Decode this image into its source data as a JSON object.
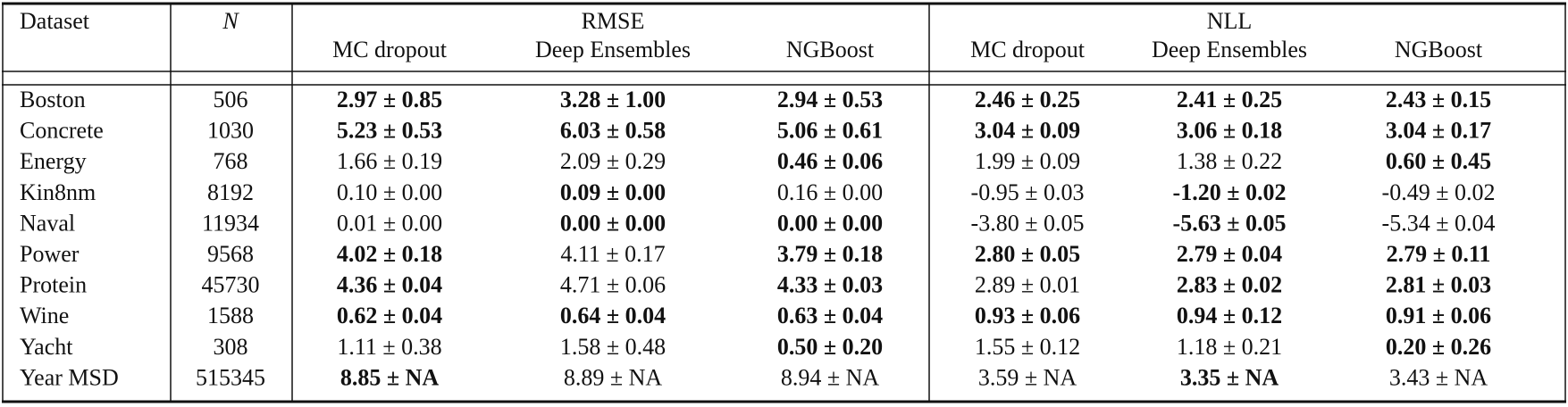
{
  "table": {
    "header": {
      "dataset": "Dataset",
      "n": "N",
      "groups": [
        {
          "title": "RMSE",
          "columns": [
            "MC dropout",
            "Deep Ensembles",
            "NGBoost"
          ]
        },
        {
          "title": "NLL",
          "columns": [
            "MC dropout",
            "Deep Ensembles",
            "NGBoost"
          ]
        }
      ]
    },
    "rows": [
      {
        "dataset": "Boston",
        "n": 506,
        "cells": [
          "2.97 ± 0.85",
          "3.28 ± 1.00",
          "2.94 ± 0.53",
          "2.46 ± 0.25",
          "2.41 ± 0.25",
          "2.43 ± 0.15"
        ],
        "bold": [
          true,
          true,
          true,
          true,
          true,
          true
        ]
      },
      {
        "dataset": "Concrete",
        "n": 1030,
        "cells": [
          "5.23 ± 0.53",
          "6.03 ± 0.58",
          "5.06 ± 0.61",
          "3.04 ± 0.09",
          "3.06 ± 0.18",
          "3.04 ± 0.17"
        ],
        "bold": [
          true,
          true,
          true,
          true,
          true,
          true
        ]
      },
      {
        "dataset": "Energy",
        "n": 768,
        "cells": [
          "1.66 ± 0.19",
          "2.09 ± 0.29",
          "0.46 ± 0.06",
          "1.99 ± 0.09",
          "1.38 ± 0.22",
          "0.60 ± 0.45"
        ],
        "bold": [
          false,
          false,
          true,
          false,
          false,
          true
        ]
      },
      {
        "dataset": "Kin8nm",
        "n": 8192,
        "cells": [
          "0.10 ± 0.00",
          "0.09 ± 0.00",
          "0.16 ± 0.00",
          "-0.95 ± 0.03",
          "-1.20 ± 0.02",
          "-0.49 ± 0.02"
        ],
        "bold": [
          false,
          true,
          false,
          false,
          true,
          false
        ]
      },
      {
        "dataset": "Naval",
        "n": 11934,
        "cells": [
          "0.01 ± 0.00",
          "0.00 ± 0.00",
          "0.00 ± 0.00",
          "-3.80 ± 0.05",
          "-5.63 ± 0.05",
          "-5.34 ± 0.04"
        ],
        "bold": [
          false,
          true,
          true,
          false,
          true,
          false
        ]
      },
      {
        "dataset": "Power",
        "n": 9568,
        "cells": [
          "4.02 ± 0.18",
          "4.11 ± 0.17",
          "3.79 ± 0.18",
          "2.80 ± 0.05",
          "2.79 ± 0.04",
          "2.79 ± 0.11"
        ],
        "bold": [
          true,
          false,
          true,
          true,
          true,
          true
        ]
      },
      {
        "dataset": "Protein",
        "n": 45730,
        "cells": [
          "4.36 ± 0.04",
          "4.71 ± 0.06",
          "4.33 ± 0.03",
          "2.89 ± 0.01",
          "2.83 ± 0.02",
          "2.81 ± 0.03"
        ],
        "bold": [
          true,
          false,
          true,
          false,
          true,
          true
        ]
      },
      {
        "dataset": "Wine",
        "n": 1588,
        "cells": [
          "0.62 ± 0.04",
          "0.64 ± 0.04",
          "0.63 ± 0.04",
          "0.93 ± 0.06",
          "0.94 ± 0.12",
          "0.91 ± 0.06"
        ],
        "bold": [
          true,
          true,
          true,
          true,
          true,
          true
        ]
      },
      {
        "dataset": "Yacht",
        "n": 308,
        "cells": [
          "1.11 ± 0.38",
          "1.58 ± 0.48",
          "0.50 ± 0.20",
          "1.55 ± 0.12",
          "1.18 ± 0.21",
          "0.20 ± 0.26"
        ],
        "bold": [
          false,
          false,
          true,
          false,
          false,
          true
        ]
      },
      {
        "dataset": "Year MSD",
        "n": 515345,
        "cells": [
          "8.85 ± NA",
          "8.89 ± NA",
          "8.94 ± NA",
          "3.59 ± NA",
          "3.35 ± NA",
          "3.43 ± NA"
        ],
        "bold": [
          true,
          false,
          false,
          false,
          true,
          false
        ]
      }
    ]
  }
}
